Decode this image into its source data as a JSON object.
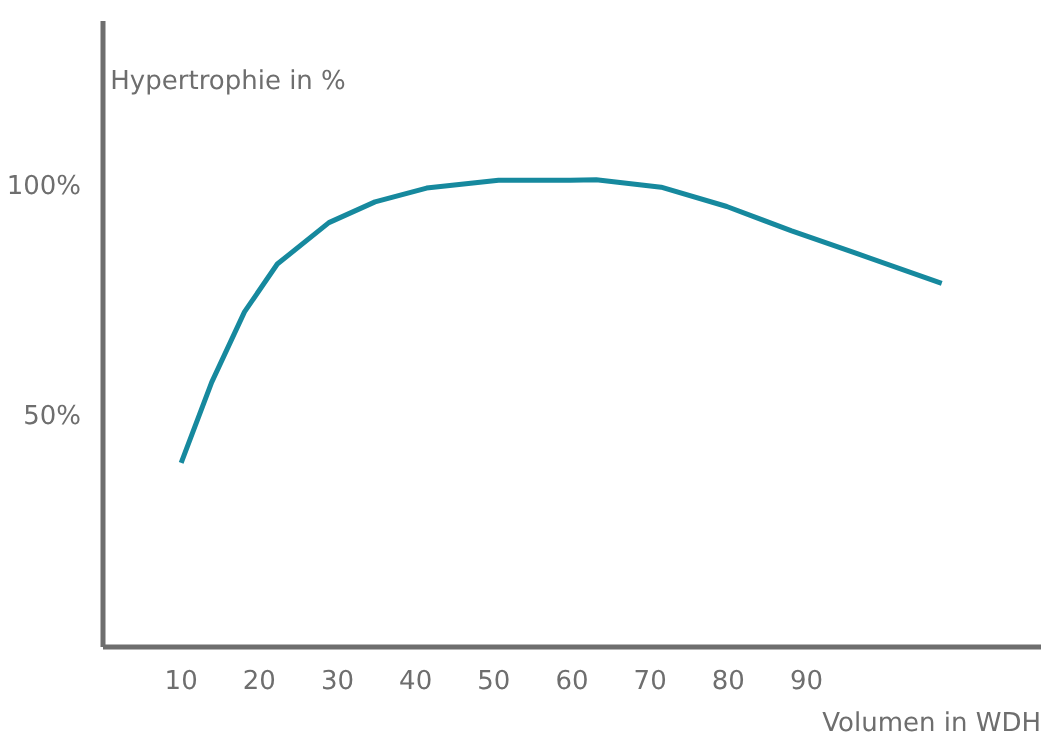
{
  "chart_data": {
    "type": "line",
    "xlabel": "Volumen in WDH",
    "ylabel": "Hypertrophie in %",
    "xlim": [
      0,
      120
    ],
    "ylim": [
      0,
      136
    ],
    "xticks": [
      10,
      20,
      30,
      40,
      50,
      60,
      70,
      80,
      90
    ],
    "yticks": [
      {
        "value": 50,
        "label": "50%"
      },
      {
        "value": 100,
        "label": "100%"
      }
    ],
    "grid": false,
    "marker": "none",
    "line_style": "solid",
    "series": [
      {
        "color": "#16899e",
        "x": [
          10,
          13.9,
          18.1,
          22.3,
          28.9,
          34.8,
          41.4,
          50.6,
          59.8,
          63.1,
          71.4,
          79.8,
          88.1,
          96.4,
          107.3
        ],
        "values": [
          40,
          57.5,
          72.8,
          83.2,
          92.2,
          96.7,
          99.7,
          101.4,
          101.4,
          101.5,
          99.9,
          95.7,
          90.4,
          85.5,
          79
        ]
      }
    ]
  }
}
